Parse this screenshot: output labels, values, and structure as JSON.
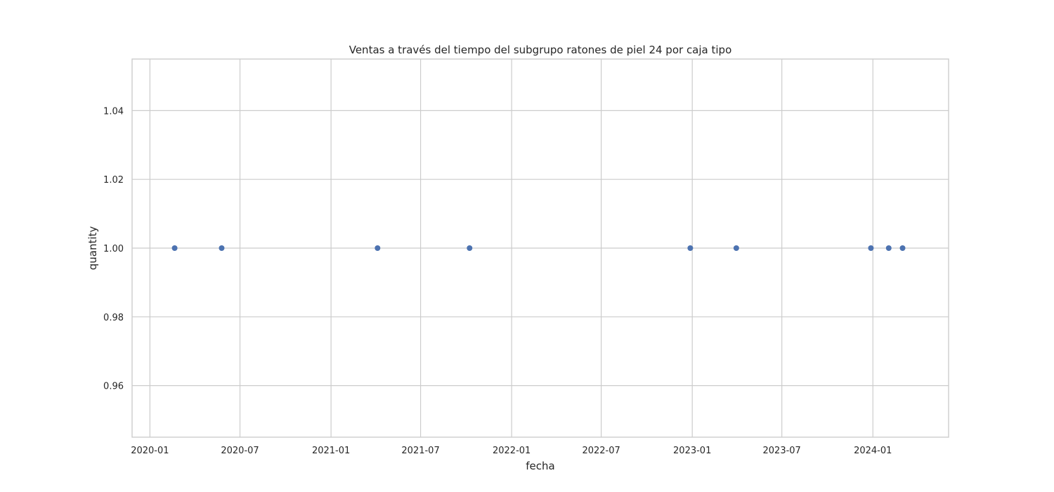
{
  "chart_data": {
    "type": "scatter",
    "title": "Ventas a través del tiempo del subgrupo ratones de piel 24 por caja tipo",
    "xlabel": "fecha",
    "ylabel": "quantity",
    "xlim": [
      "2019-11-26",
      "2024-06-02"
    ],
    "ylim": [
      0.945,
      1.055
    ],
    "x_ticks": [
      "2020-01",
      "2020-07",
      "2021-01",
      "2021-07",
      "2022-01",
      "2022-07",
      "2023-01",
      "2023-07",
      "2024-01"
    ],
    "y_ticks": [
      "0.96",
      "0.98",
      "1.00",
      "1.02",
      "1.04"
    ],
    "grid": true,
    "legend": "none",
    "point_color": "#4c72b0",
    "points": [
      {
        "x": "2020-02-20",
        "y": 1.0
      },
      {
        "x": "2020-05-25",
        "y": 1.0
      },
      {
        "x": "2021-04-05",
        "y": 1.0
      },
      {
        "x": "2021-10-08",
        "y": 1.0
      },
      {
        "x": "2022-12-28",
        "y": 1.0
      },
      {
        "x": "2023-03-31",
        "y": 1.0
      },
      {
        "x": "2023-12-28",
        "y": 1.0
      },
      {
        "x": "2024-02-02",
        "y": 1.0
      },
      {
        "x": "2024-03-01",
        "y": 1.0
      }
    ]
  }
}
